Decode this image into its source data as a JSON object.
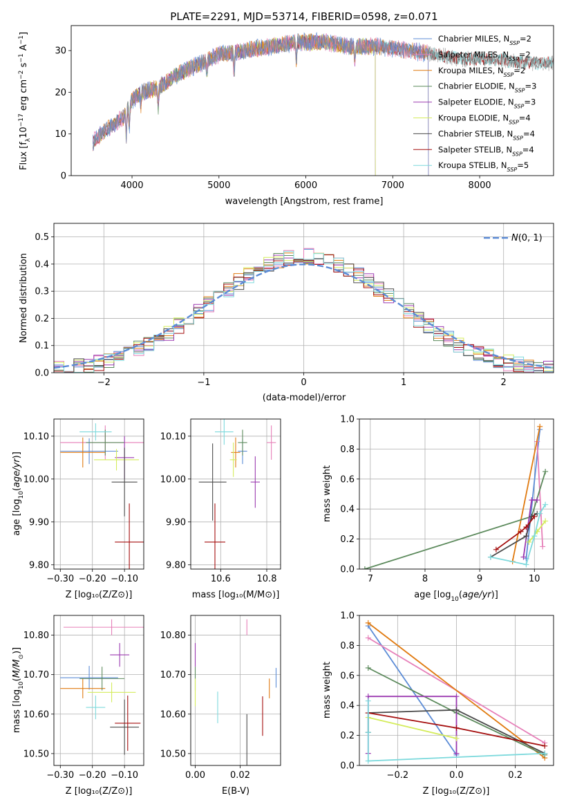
{
  "title": "PLATE=2291, MJD=53714, FIBERID=0598, z=0.071",
  "colors": {
    "chabrier_miles": "#5b8bd6",
    "salpeter_miles": "#e67eb8",
    "kroupa_miles": "#e07a10",
    "chabrier_elodie": "#5c8a5c",
    "salpeter_elodie": "#9b39b0",
    "kroupa_elodie": "#d4ec5a",
    "chabrier_stelib": "#4a4a4a",
    "salpeter_stelib": "#a40c0c",
    "kroupa_stelib": "#7cd9dc",
    "normal_curve": "#5b8bd6",
    "grid": "#b0b0b0"
  },
  "chart_data": [
    {
      "id": "spectrum",
      "type": "line",
      "xlabel": "wavelength [Angstrom, rest frame]",
      "ylabel": "Flux [f_λ10^-17 erg cm^-2 s^-1 A^-1]",
      "xlim": [
        3300,
        8850
      ],
      "ylim": [
        0,
        36
      ],
      "xticks": [
        4000,
        5000,
        6000,
        7000,
        8000
      ],
      "yticks": [
        0,
        10,
        20,
        30
      ],
      "grid": false,
      "legend_position": "top-right",
      "legend": [
        {
          "text": "Chabrier MILES, N_SSP=2",
          "color": "chabrier_miles"
        },
        {
          "text": "Salpeter MILES, N_SSP=2",
          "color": "salpeter_miles"
        },
        {
          "text": "Kroupa MILES, N_SSP=2",
          "color": "kroupa_miles"
        },
        {
          "text": "Chabrier ELODIE, N_SSP=3",
          "color": "chabrier_elodie"
        },
        {
          "text": "Salpeter ELODIE, N_SSP=3",
          "color": "salpeter_elodie"
        },
        {
          "text": "Kroupa ELODIE, N_SSP=4",
          "color": "kroupa_elodie"
        },
        {
          "text": "Chabrier STELIB, N_SSP=4",
          "color": "chabrier_stelib"
        },
        {
          "text": "Salpeter STELIB, N_SSP=4",
          "color": "salpeter_stelib"
        },
        {
          "text": "Kroupa STELIB, N_SSP=5",
          "color": "kroupa_stelib"
        }
      ],
      "continuum": [
        [
          3550,
          8
        ],
        [
          3700,
          11
        ],
        [
          3900,
          14
        ],
        [
          4000,
          18
        ],
        [
          4100,
          20
        ],
        [
          4300,
          21
        ],
        [
          4500,
          24
        ],
        [
          4800,
          27
        ],
        [
          5000,
          29
        ],
        [
          5300,
          30
        ],
        [
          5600,
          31
        ],
        [
          5900,
          32
        ],
        [
          6200,
          32
        ],
        [
          6500,
          31
        ],
        [
          6800,
          31
        ],
        [
          7200,
          30
        ],
        [
          7500,
          29
        ],
        [
          7800,
          28
        ],
        [
          8200,
          28
        ],
        [
          8500,
          27
        ],
        [
          8850,
          27
        ]
      ],
      "model_coverage": {
        "miles": [
          3550,
          7410
        ],
        "elodie": [
          3900,
          6800
        ],
        "stelib": [
          3550,
          8850
        ]
      }
    },
    {
      "id": "residuals",
      "type": "histogram",
      "xlabel": "(data-model)/error",
      "ylabel": "Normed distribution",
      "xlim": [
        -2.5,
        2.5
      ],
      "ylim": [
        0,
        0.55
      ],
      "xticks": [
        -2,
        -1,
        0,
        1,
        2
      ],
      "yticks": [
        0.0,
        0.1,
        0.2,
        0.3,
        0.4,
        0.5
      ],
      "grid": true,
      "legend_position": "top-right",
      "legend": [
        {
          "text": "N(0,1)",
          "color": "normal_curve"
        }
      ],
      "bin_width": 0.1,
      "peak_height": 0.52
    },
    {
      "id": "age_vs_Z",
      "type": "scatter",
      "xlabel": "Z [log10(Z/Z⊙)]",
      "ylabel": "age [log10(age/yr)]",
      "xlim": [
        -0.32,
        -0.04
      ],
      "ylim": [
        9.79,
        10.14
      ],
      "xticks": [
        -0.3,
        -0.2,
        -0.1
      ],
      "yticks": [
        9.8,
        9.9,
        10.0,
        10.1
      ],
      "grid": true,
      "points": [
        {
          "series": "chabrier_miles",
          "x": -0.21,
          "y": 10.065,
          "xerr": 0.09,
          "yerr": 0.03
        },
        {
          "series": "salpeter_miles",
          "x": -0.16,
          "y": 10.085,
          "xerr": 0.14,
          "yerr": 0.04
        },
        {
          "series": "kroupa_miles",
          "x": -0.23,
          "y": 10.062,
          "xerr": 0.07,
          "yerr": 0.035
        },
        {
          "series": "chabrier_elodie",
          "x": -0.16,
          "y": 10.085,
          "xerr": 0.06,
          "yerr": 0.03
        },
        {
          "series": "salpeter_elodie",
          "x": -0.1,
          "y": 10.05,
          "xerr": 0.03,
          "yerr": 0.05
        },
        {
          "series": "kroupa_elodie",
          "x": -0.125,
          "y": 10.045,
          "xerr": 0.07,
          "yerr": 0.025
        },
        {
          "series": "chabrier_stelib",
          "x": -0.1,
          "y": 9.993,
          "xerr": 0.04,
          "yerr": 0.08
        },
        {
          "series": "salpeter_stelib",
          "x": -0.085,
          "y": 9.853,
          "xerr": 0.045,
          "yerr": 0.09
        },
        {
          "series": "kroupa_stelib",
          "x": -0.19,
          "y": 10.11,
          "xerr": 0.05,
          "yerr": 0.02
        }
      ]
    },
    {
      "id": "age_vs_mass",
      "type": "scatter",
      "xlabel": "mass [log10(M/M⊙)]",
      "ylabel": "",
      "xlim": [
        10.47,
        10.86
      ],
      "ylim": [
        9.79,
        10.14
      ],
      "xticks": [
        10.6,
        10.8
      ],
      "yticks": [
        9.8,
        9.9,
        10.0,
        10.1
      ],
      "grid": true,
      "points": [
        {
          "series": "chabrier_miles",
          "x": 10.695,
          "y": 10.065,
          "xerr": 0.02,
          "yerr": 0.03
        },
        {
          "series": "salpeter_miles",
          "x": 10.82,
          "y": 10.085,
          "xerr": 0.02,
          "yerr": 0.04
        },
        {
          "series": "kroupa_miles",
          "x": 10.665,
          "y": 10.062,
          "xerr": 0.02,
          "yerr": 0.035
        },
        {
          "series": "chabrier_elodie",
          "x": 10.695,
          "y": 10.085,
          "xerr": 0.02,
          "yerr": 0.03
        },
        {
          "series": "salpeter_elodie",
          "x": 10.75,
          "y": 9.993,
          "xerr": 0.02,
          "yerr": 0.06
        },
        {
          "series": "kroupa_elodie",
          "x": 10.655,
          "y": 10.045,
          "xerr": 0.015,
          "yerr": 0.04
        },
        {
          "series": "chabrier_stelib",
          "x": 10.565,
          "y": 9.993,
          "xerr": 0.06,
          "yerr": 0.09
        },
        {
          "series": "salpeter_stelib",
          "x": 10.575,
          "y": 9.853,
          "xerr": 0.045,
          "yerr": 0.09
        },
        {
          "series": "kroupa_stelib",
          "x": 10.615,
          "y": 10.11,
          "xerr": 0.04,
          "yerr": 0.03
        }
      ]
    },
    {
      "id": "weight_vs_age",
      "type": "line",
      "xlabel": "age [log10(age/yr)]",
      "ylabel": "mass weight",
      "xlim": [
        6.8,
        10.35
      ],
      "ylim": [
        0,
        1.0
      ],
      "xticks": [
        7,
        8,
        9,
        10
      ],
      "yticks": [
        0.0,
        0.2,
        0.4,
        0.6,
        0.8,
        1.0
      ],
      "grid": true,
      "series": [
        {
          "name": "chabrier_miles",
          "x": [
            9.85,
            10.1
          ],
          "y": [
            0.07,
            0.93
          ]
        },
        {
          "name": "salpeter_miles",
          "x": [
            10.05,
            10.15
          ],
          "y": [
            0.85,
            0.15
          ]
        },
        {
          "name": "kroupa_miles",
          "x": [
            9.6,
            10.1
          ],
          "y": [
            0.05,
            0.95
          ]
        },
        {
          "name": "chabrier_elodie",
          "x": [
            6.9,
            9.95,
            10.2
          ],
          "y": [
            0.0,
            0.35,
            0.65
          ]
        },
        {
          "name": "salpeter_elodie",
          "x": [
            9.8,
            9.95,
            10.05
          ],
          "y": [
            0.08,
            0.46,
            0.46
          ]
        },
        {
          "name": "kroupa_elodie",
          "x": [
            9.9,
            10.05,
            10.2
          ],
          "y": [
            0.18,
            0.25,
            0.32
          ]
        },
        {
          "name": "chabrier_stelib",
          "x": [
            9.2,
            9.85,
            9.95,
            10.05
          ],
          "y": [
            0.08,
            0.22,
            0.35,
            0.37
          ]
        },
        {
          "name": "salpeter_stelib",
          "x": [
            9.3,
            9.75,
            9.85,
            10.0
          ],
          "y": [
            0.13,
            0.25,
            0.28,
            0.35
          ]
        },
        {
          "name": "kroupa_stelib",
          "x": [
            9.2,
            9.85,
            10.0,
            10.1,
            10.2
          ],
          "y": [
            0.08,
            0.03,
            0.22,
            0.37,
            0.43
          ]
        }
      ]
    },
    {
      "id": "mass_vs_Z",
      "type": "scatter",
      "xlabel": "Z [log10(Z/Z⊙)]",
      "ylabel": "mass [log10(M/M⊙)]",
      "xlim": [
        -0.32,
        -0.04
      ],
      "ylim": [
        10.47,
        10.85
      ],
      "xticks": [
        -0.3,
        -0.2,
        -0.1
      ],
      "yticks": [
        10.5,
        10.6,
        10.7,
        10.8
      ],
      "grid": true,
      "points": [
        {
          "series": "chabrier_miles",
          "x": -0.21,
          "y": 10.692,
          "xerr": 0.09,
          "yerr": 0.03
        },
        {
          "series": "salpeter_miles",
          "x": -0.14,
          "y": 10.82,
          "xerr": 0.15,
          "yerr": 0.02
        },
        {
          "series": "kroupa_miles",
          "x": -0.23,
          "y": 10.665,
          "xerr": 0.07,
          "yerr": 0.025
        },
        {
          "series": "chabrier_elodie",
          "x": -0.17,
          "y": 10.69,
          "xerr": 0.07,
          "yerr": 0.03
        },
        {
          "series": "salpeter_elodie",
          "x": -0.115,
          "y": 10.75,
          "xerr": 0.03,
          "yerr": 0.03
        },
        {
          "series": "kroupa_elodie",
          "x": -0.14,
          "y": 10.655,
          "xerr": 0.075,
          "yerr": 0.025
        },
        {
          "series": "chabrier_stelib",
          "x": -0.1,
          "y": 10.567,
          "xerr": 0.045,
          "yerr": 0.07
        },
        {
          "series": "salpeter_stelib",
          "x": -0.09,
          "y": 10.577,
          "xerr": 0.04,
          "yerr": 0.07
        },
        {
          "series": "kroupa_stelib",
          "x": -0.19,
          "y": 10.617,
          "xerr": 0.03,
          "yerr": 0.03
        }
      ]
    },
    {
      "id": "mass_vs_ebv",
      "type": "scatter",
      "xlabel": "E(B-V)",
      "ylabel": "",
      "xlim": [
        -0.002,
        0.038
      ],
      "ylim": [
        10.47,
        10.85
      ],
      "xticks": [
        0.0,
        0.02
      ],
      "xticklabels": [
        "0.00",
        "0.02"
      ],
      "yticks": [
        10.5,
        10.6,
        10.7,
        10.8
      ],
      "grid": true,
      "points": [
        {
          "series": "chabrier_miles",
          "x": 0.036,
          "y": 10.692,
          "xerr": 0.0,
          "yerr": 0.025
        },
        {
          "series": "salpeter_miles",
          "x": 0.023,
          "y": 10.82,
          "xerr": 0.0,
          "yerr": 0.02
        },
        {
          "series": "kroupa_miles",
          "x": 0.033,
          "y": 10.665,
          "xerr": 0.0,
          "yerr": 0.025
        },
        {
          "series": "chabrier_elodie",
          "x": 0.0,
          "y": 10.69,
          "xerr": 0.0,
          "yerr": 0.03
        },
        {
          "series": "salpeter_elodie",
          "x": 0.0,
          "y": 10.75,
          "xerr": 0.0,
          "yerr": 0.03
        },
        {
          "series": "kroupa_elodie",
          "x": 0.0,
          "y": 10.655,
          "xerr": 0.0,
          "yerr": 0.035
        },
        {
          "series": "chabrier_stelib",
          "x": 0.023,
          "y": 10.522,
          "xerr": 0.0,
          "yerr": 0.078
        },
        {
          "series": "salpeter_stelib",
          "x": 0.03,
          "y": 10.595,
          "xerr": 0.0,
          "yerr": 0.05
        },
        {
          "series": "kroupa_stelib",
          "x": 0.01,
          "y": 10.617,
          "xerr": 0.0,
          "yerr": 0.04
        }
      ]
    },
    {
      "id": "weight_vs_Z",
      "type": "line",
      "xlabel": "Z [log10(Z/Z⊙)]",
      "ylabel": "mass weight",
      "xlim": [
        -0.33,
        0.33
      ],
      "ylim": [
        0,
        1.0
      ],
      "xticks": [
        -0.2,
        0.0,
        0.2
      ],
      "yticks": [
        0.0,
        0.2,
        0.4,
        0.6,
        0.8,
        1.0
      ],
      "grid": true,
      "series": [
        {
          "name": "chabrier_miles",
          "x": [
            -0.3,
            0.0
          ],
          "y": [
            0.93,
            0.07
          ]
        },
        {
          "name": "salpeter_miles",
          "x": [
            -0.3,
            0.3
          ],
          "y": [
            0.85,
            0.15
          ]
        },
        {
          "name": "kroupa_miles",
          "x": [
            -0.3,
            0.3
          ],
          "y": [
            0.95,
            0.05
          ]
        },
        {
          "name": "chabrier_elodie",
          "x": [
            -0.3,
            0.0,
            0.3
          ],
          "y": [
            0.65,
            0.35,
            0.07
          ]
        },
        {
          "name": "salpeter_elodie",
          "x": [
            -0.3,
            -0.3,
            0.0,
            0.0
          ],
          "y": [
            0.08,
            0.46,
            0.46,
            0.08
          ]
        },
        {
          "name": "kroupa_elodie",
          "x": [
            -0.3,
            0.0
          ],
          "y": [
            0.32,
            0.18
          ]
        },
        {
          "name": "chabrier_stelib",
          "x": [
            -0.3,
            -0.3,
            0.0,
            0.3
          ],
          "y": [
            0.22,
            0.35,
            0.37,
            0.08
          ]
        },
        {
          "name": "salpeter_stelib",
          "x": [
            -0.3,
            0.0,
            0.3
          ],
          "y": [
            0.35,
            0.25,
            0.13
          ]
        },
        {
          "name": "kroupa_stelib",
          "x": [
            -0.3,
            -0.3,
            -0.3,
            0.3
          ],
          "y": [
            0.43,
            0.22,
            0.03,
            0.08
          ]
        }
      ]
    }
  ]
}
